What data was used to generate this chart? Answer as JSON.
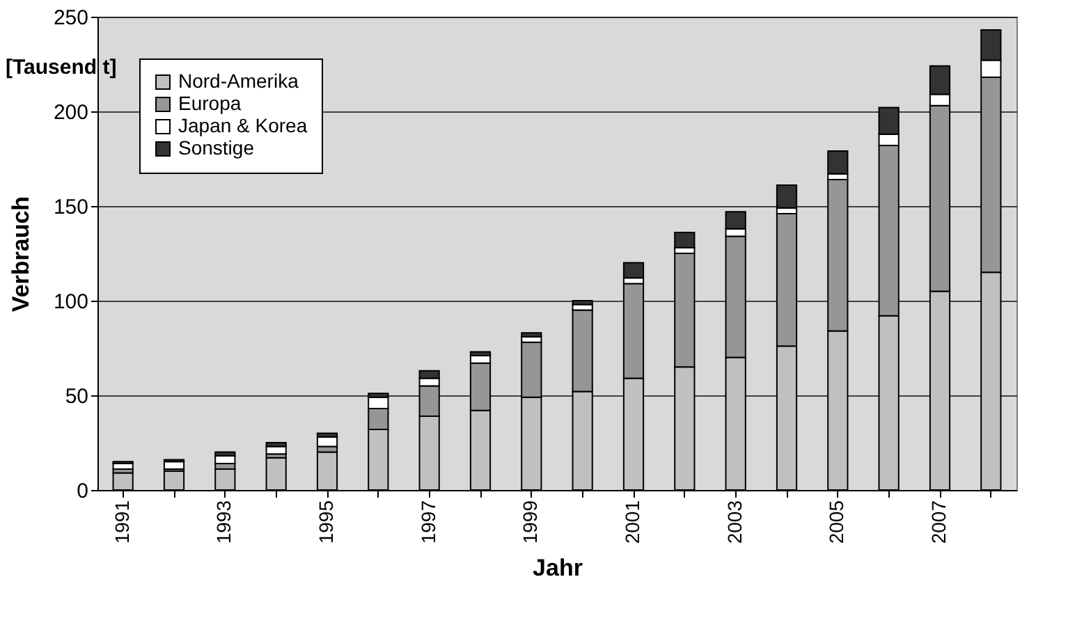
{
  "chart_data": {
    "type": "bar",
    "stacked": true,
    "xlabel": "Jahr",
    "ylabel": "Verbrauch",
    "annotations": [
      "[Tausend t]"
    ],
    "categories": [
      "1991",
      null,
      "1993",
      null,
      "1995",
      null,
      "1997",
      null,
      "1999",
      null,
      "2001",
      null,
      "2003",
      null,
      "2005",
      null,
      "2007",
      null
    ],
    "series": [
      {
        "name": "Nord-Amerika",
        "color": "#c0c0c0",
        "values": [
          9,
          10,
          11,
          17,
          20,
          32,
          39,
          42,
          49,
          52,
          59,
          65,
          70,
          76,
          84,
          92,
          105,
          115
        ]
      },
      {
        "name": "Europa",
        "color": "#969696",
        "values": [
          2,
          1,
          3,
          2,
          3,
          11,
          16,
          25,
          29,
          43,
          50,
          60,
          64,
          70,
          80,
          90,
          98,
          103
        ]
      },
      {
        "name": "Japan & Korea",
        "color": "#ffffff",
        "values": [
          3,
          4,
          4,
          4,
          5,
          6,
          4,
          4,
          3,
          3,
          3,
          3,
          4,
          3,
          3,
          6,
          6,
          9
        ]
      },
      {
        "name": "Sonstige",
        "color": "#333333",
        "values": [
          1,
          1,
          2,
          2,
          2,
          2,
          4,
          2,
          2,
          2,
          8,
          8,
          9,
          12,
          12,
          14,
          15,
          16
        ]
      }
    ],
    "ylim": [
      0,
      250
    ],
    "yticks": [
      0,
      50,
      100,
      150,
      200,
      250
    ],
    "grid": "y",
    "legend": "top left"
  }
}
